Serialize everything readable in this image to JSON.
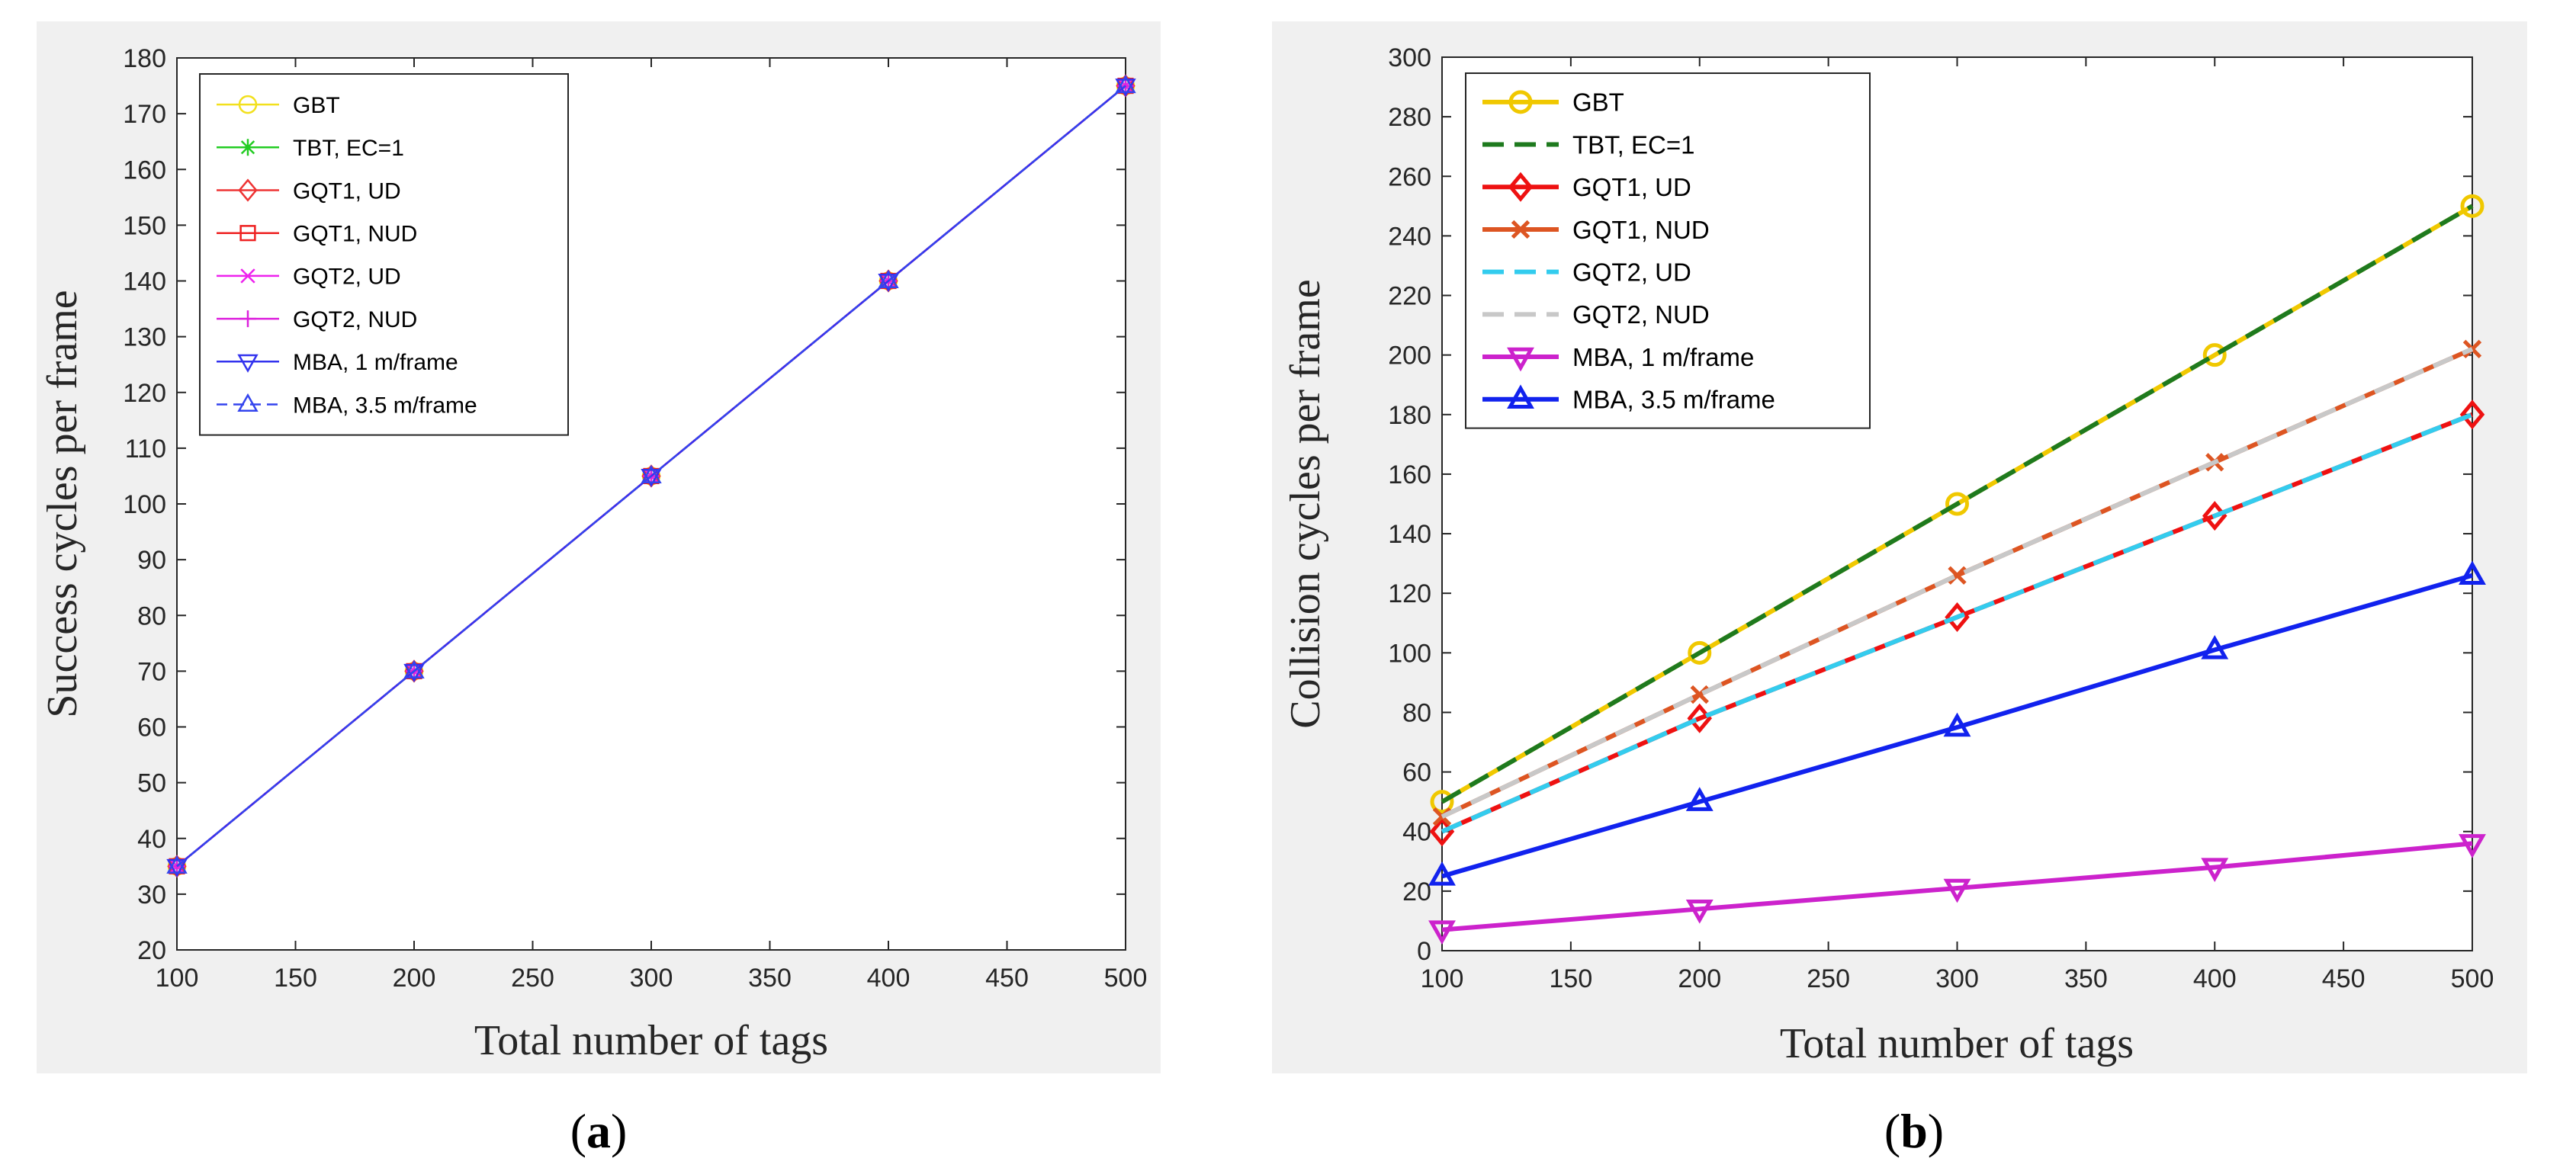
{
  "chart_data": [
    {
      "type": "line",
      "panel": "a",
      "caption_letter": "a",
      "xlabel": "Total number of tags",
      "ylabel": "Success cycles per frame",
      "xlim": [
        100,
        500
      ],
      "ylim": [
        20,
        180
      ],
      "x_ticks": [
        100,
        150,
        200,
        250,
        300,
        350,
        400,
        450,
        500
      ],
      "y_ticks": [
        20,
        30,
        40,
        50,
        60,
        70,
        80,
        90,
        100,
        110,
        120,
        130,
        140,
        150,
        160,
        170,
        180
      ],
      "grid": false,
      "legend_position": "top-left",
      "x": [
        100,
        200,
        300,
        400,
        500
      ],
      "series": [
        {
          "name": "GBT",
          "color": "#f2e01d",
          "marker": "circle",
          "dash": "solid",
          "values": [
            35,
            70,
            105,
            140,
            175
          ]
        },
        {
          "name": "TBT, EC=1",
          "color": "#22cc22",
          "marker": "asterisk",
          "dash": "solid",
          "values": [
            35,
            70,
            105,
            140,
            175
          ]
        },
        {
          "name": "GQT1, UD",
          "color": "#ee3333",
          "marker": "diamond",
          "dash": "solid",
          "values": [
            35,
            70,
            105,
            140,
            175
          ]
        },
        {
          "name": "GQT1, NUD",
          "color": "#ee2222",
          "marker": "square",
          "dash": "solid",
          "values": [
            35,
            70,
            105,
            140,
            175
          ]
        },
        {
          "name": "GQT2, UD",
          "color": "#ee22ee",
          "marker": "x",
          "dash": "solid",
          "values": [
            35,
            70,
            105,
            140,
            175
          ]
        },
        {
          "name": "GQT2, NUD",
          "color": "#dd22dd",
          "marker": "plus",
          "dash": "solid",
          "values": [
            35,
            70,
            105,
            140,
            175
          ]
        },
        {
          "name": "MBA, 1 m/frame",
          "color": "#3333ee",
          "marker": "triangle-down",
          "dash": "solid",
          "values": [
            35,
            70,
            105,
            140,
            175
          ]
        },
        {
          "name": "MBA, 3.5 m/frame",
          "color": "#3344ee",
          "marker": "triangle-up",
          "dash": "dashed",
          "values": [
            35,
            70,
            105,
            140,
            175
          ]
        }
      ]
    },
    {
      "type": "line",
      "panel": "b",
      "caption_letter": "b",
      "xlabel": "Total number of tags",
      "ylabel": "Collision cycles per frame",
      "xlim": [
        100,
        500
      ],
      "ylim": [
        0,
        300
      ],
      "x_ticks": [
        100,
        150,
        200,
        250,
        300,
        350,
        400,
        450,
        500
      ],
      "y_ticks": [
        0,
        20,
        40,
        60,
        80,
        100,
        120,
        140,
        160,
        180,
        200,
        220,
        240,
        260,
        280,
        300
      ],
      "grid": false,
      "legend_position": "top-left",
      "x": [
        100,
        200,
        300,
        400,
        500
      ],
      "series": [
        {
          "name": "GBT",
          "color": "#f0c800",
          "marker": "circle",
          "dash": "solid",
          "values": [
            50,
            100,
            150,
            200,
            250
          ]
        },
        {
          "name": "TBT, EC=1",
          "color": "#1e7a1e",
          "marker": "none",
          "dash": "dashed",
          "values": [
            50,
            100,
            150,
            200,
            250
          ]
        },
        {
          "name": "GQT1, UD",
          "color": "#ee1111",
          "marker": "diamond",
          "dash": "solid",
          "values": [
            40,
            78,
            112,
            146,
            180
          ]
        },
        {
          "name": "GQT1, NUD",
          "color": "#dd5522",
          "marker": "x",
          "dash": "solid",
          "values": [
            45,
            86,
            126,
            164,
            202
          ]
        },
        {
          "name": "GQT2, UD",
          "color": "#33ccee",
          "marker": "none",
          "dash": "dashed",
          "values": [
            40,
            78,
            112,
            146,
            180
          ]
        },
        {
          "name": "GQT2, NUD",
          "color": "#c8c8c8",
          "marker": "none",
          "dash": "dashed",
          "values": [
            45,
            86,
            126,
            164,
            202
          ]
        },
        {
          "name": "MBA, 1 m/frame",
          "color": "#cc22cc",
          "marker": "triangle-down",
          "dash": "solid",
          "values": [
            7,
            14,
            21,
            28,
            36
          ]
        },
        {
          "name": "MBA, 3.5 m/frame",
          "color": "#1122ee",
          "marker": "triangle-up",
          "dash": "solid",
          "values": [
            25,
            50,
            75,
            101,
            126
          ]
        }
      ]
    }
  ]
}
